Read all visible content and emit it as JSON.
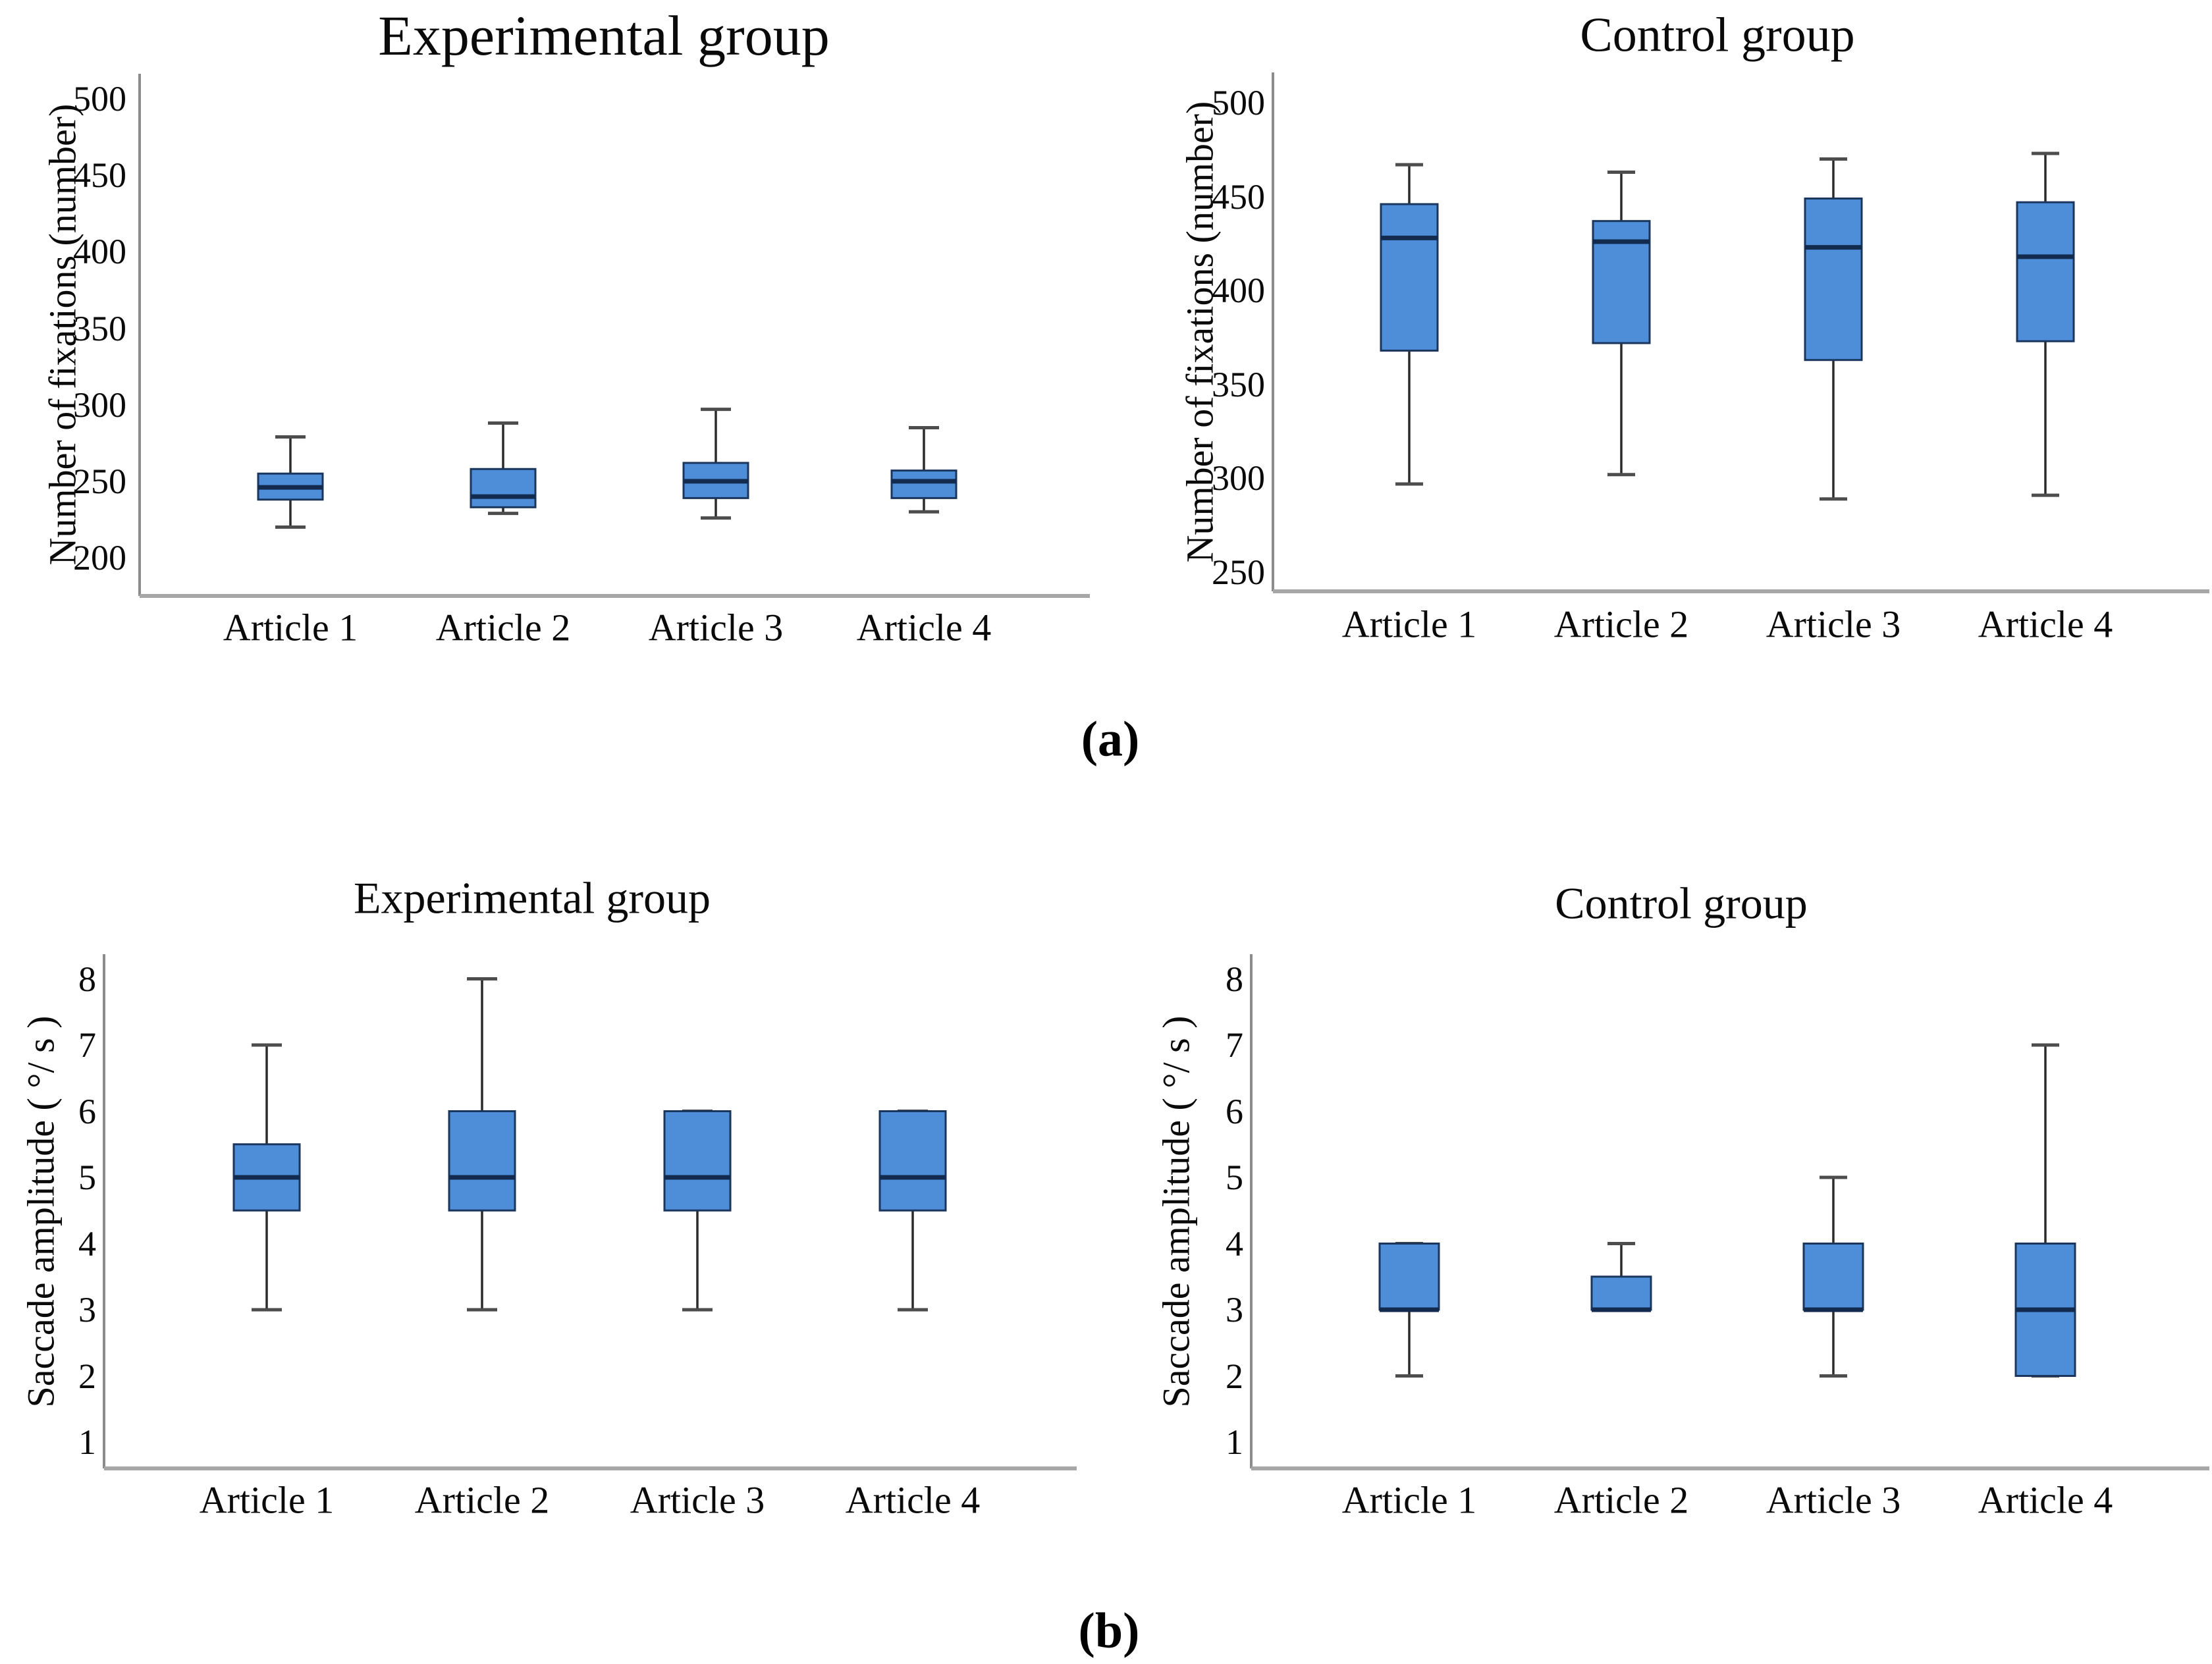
{
  "figure": {
    "caption_a": "(a)",
    "caption_b": "(b)"
  },
  "colors": {
    "box_fill": "#4E8ED9",
    "box_border": "#1B365D",
    "median_line": "#132B4F",
    "whisker_line": "#2B2B2B",
    "whisker_cap": "#4D4D4D",
    "y_axis_line": "#8C8C8C",
    "x_baseline": "#A6A6A6",
    "text": "#000000"
  },
  "chart_data": [
    {
      "type": "box",
      "title": "Experimental group",
      "ylabel": "Number of fixations (number)",
      "categories": [
        "Article 1",
        "Article 2",
        "Article 3",
        "Article 4"
      ],
      "yticks": [
        200,
        250,
        300,
        350,
        400,
        450,
        500
      ],
      "ylim": [
        175,
        525
      ],
      "grid": false,
      "series": [
        {
          "category": "Article 1",
          "low": 220,
          "q1": 238,
          "median": 246,
          "q3": 255,
          "high": 279
        },
        {
          "category": "Article 2",
          "low": 229,
          "q1": 233,
          "median": 240,
          "q3": 258,
          "high": 288
        },
        {
          "category": "Article 3",
          "low": 226,
          "q1": 239,
          "median": 250,
          "q3": 262,
          "high": 297
        },
        {
          "category": "Article 4",
          "low": 230,
          "q1": 239,
          "median": 250,
          "q3": 257,
          "high": 285
        }
      ]
    },
    {
      "type": "box",
      "title": "Control group",
      "ylabel": "Number of fixations (number)",
      "categories": [
        "Article 1",
        "Article 2",
        "Article 3",
        "Article 4"
      ],
      "yticks": [
        250,
        300,
        350,
        400,
        450,
        500
      ],
      "ylim": [
        240,
        516
      ],
      "grid": false,
      "series": [
        {
          "category": "Article 1",
          "low": 297,
          "q1": 368,
          "median": 428,
          "q3": 446,
          "high": 467
        },
        {
          "category": "Article 2",
          "low": 302,
          "q1": 372,
          "median": 426,
          "q3": 437,
          "high": 463
        },
        {
          "category": "Article 3",
          "low": 289,
          "q1": 363,
          "median": 423,
          "q3": 449,
          "high": 470
        },
        {
          "category": "Article 4",
          "low": 291,
          "q1": 373,
          "median": 418,
          "q3": 447,
          "high": 473
        }
      ]
    },
    {
      "type": "box",
      "title": "Experimental group",
      "ylabel": "Saccade amplitude ( °/ s )",
      "categories": [
        "Article 1",
        "Article 2",
        "Article 3",
        "Article 4"
      ],
      "yticks": [
        1,
        2,
        3,
        4,
        5,
        6,
        7,
        8
      ],
      "ylim": [
        0.6,
        8.4
      ],
      "grid": false,
      "series": [
        {
          "category": "Article 1",
          "low": 3,
          "q1": 4.5,
          "median": 5,
          "q3": 5.5,
          "high": 7
        },
        {
          "category": "Article 2",
          "low": 3,
          "q1": 4.5,
          "median": 5,
          "q3": 6,
          "high": 8
        },
        {
          "category": "Article 3",
          "low": 3,
          "q1": 4.5,
          "median": 5,
          "q3": 6,
          "high": 6
        },
        {
          "category": "Article 4",
          "low": 3,
          "q1": 4.5,
          "median": 5,
          "q3": 6,
          "high": 6
        }
      ]
    },
    {
      "type": "box",
      "title": "Control group",
      "ylabel": "Saccade amplitude ( °/ s )",
      "categories": [
        "Article 1",
        "Article 2",
        "Article 3",
        "Article 4"
      ],
      "yticks": [
        1,
        2,
        3,
        4,
        5,
        6,
        7,
        8
      ],
      "ylim": [
        0.6,
        8.4
      ],
      "grid": false,
      "series": [
        {
          "category": "Article 1",
          "low": 2,
          "q1": 3,
          "median": 3,
          "q3": 4,
          "high": 4
        },
        {
          "category": "Article 2",
          "low": 3,
          "q1": 3,
          "median": 3,
          "q3": 3.5,
          "high": 4
        },
        {
          "category": "Article 3",
          "low": 2,
          "q1": 3,
          "median": 3,
          "q3": 4,
          "high": 5
        },
        {
          "category": "Article 4",
          "low": 2,
          "q1": 2,
          "median": 3,
          "q3": 4,
          "high": 7
        }
      ]
    }
  ]
}
